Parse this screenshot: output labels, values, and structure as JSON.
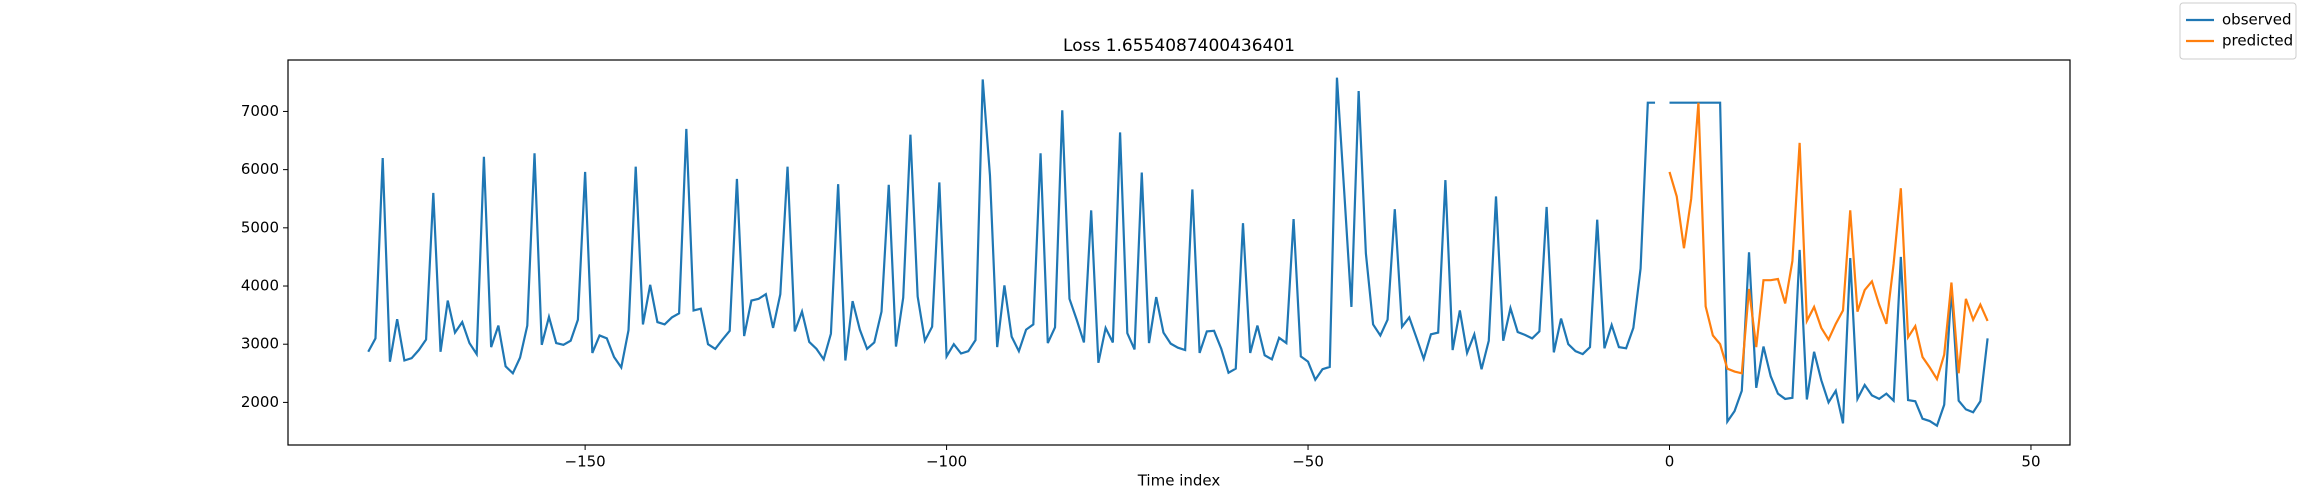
{
  "chart_data": {
    "type": "line",
    "title": "Loss 1.6554087400436401",
    "x_label": "Time index",
    "xlim": [
      -191.1,
      55.4
    ],
    "ylim": [
      1268,
      7884
    ],
    "xticks": [
      {
        "value": -150,
        "label": "−150"
      },
      {
        "value": -100,
        "label": "−100"
      },
      {
        "value": -50,
        "label": "−50"
      },
      0,
      50
    ],
    "yticks": [
      2000,
      3000,
      4000,
      5000,
      6000,
      7000
    ],
    "legend": "upper right",
    "series": [
      {
        "name": "observed",
        "color": "#1f77b4",
        "x": [
          -180,
          -179,
          -178,
          -177,
          -176,
          -175,
          -174,
          -173,
          -172,
          -171,
          -170,
          -169,
          -168,
          -167,
          -166,
          -165,
          -164,
          -163,
          -162,
          -161,
          -160,
          -159,
          -158,
          -157,
          -156,
          -155,
          -154,
          -153,
          -152,
          -151,
          -150,
          -149,
          -148,
          -147,
          -146,
          -145,
          -144,
          -143,
          -142,
          -141,
          -140,
          -139,
          -138,
          -137,
          -136,
          -135,
          -134,
          -133,
          -132,
          -131,
          -130,
          -129,
          -128,
          -127,
          -126,
          -125,
          -124,
          -123,
          -122,
          -121,
          -120,
          -119,
          -118,
          -117,
          -116,
          -115,
          -114,
          -113,
          -112,
          -111,
          -110,
          -109,
          -108,
          -107,
          -106,
          -105,
          -104,
          -103,
          -102,
          -101,
          -100,
          -99,
          -98,
          -97,
          -96,
          -95,
          -94,
          -93,
          -92,
          -91,
          -90,
          -89,
          -88,
          -87,
          -86,
          -85,
          -84,
          -83,
          -82,
          -81,
          -80,
          -79,
          -78,
          -77,
          -76,
          -75,
          -74,
          -73,
          -72,
          -71,
          -70,
          -69,
          -68,
          -67,
          -66,
          -65,
          -64,
          -63,
          -62,
          -61,
          -60,
          -59,
          -58,
          -57,
          -56,
          -55,
          -54,
          -53,
          -52,
          -51,
          -50,
          -49,
          -48,
          -47,
          -46,
          -45,
          -44,
          -43,
          -42,
          -41,
          -40,
          -39,
          -38,
          -37,
          -36,
          -35,
          -34,
          -33,
          -32,
          -31,
          -30,
          -29,
          -28,
          -27,
          -26,
          -25,
          -24,
          -23,
          -22,
          -21,
          -20,
          -19,
          -18,
          -17,
          -16,
          -15,
          -14,
          -13,
          -12,
          -11,
          -10,
          -9,
          -8,
          -7,
          -6,
          -5,
          -4,
          -3,
          -2,
          -1,
          0,
          1,
          2,
          3,
          4,
          5,
          6,
          7,
          8,
          9,
          10,
          11,
          12,
          13,
          14,
          15,
          16,
          17,
          18,
          19,
          20,
          21,
          22,
          23,
          24,
          25,
          26,
          27,
          28,
          29,
          30,
          31,
          32,
          33,
          34,
          35,
          36,
          37,
          38,
          39,
          40,
          41,
          42,
          43,
          44
        ],
        "values": [
          2870,
          3100,
          6200,
          2700,
          3430,
          2720,
          2760,
          2900,
          3080,
          5600,
          2870,
          3750,
          3200,
          3380,
          3020,
          2830,
          6220,
          2950,
          3320,
          2620,
          2500,
          2770,
          3320,
          6280,
          2990,
          3470,
          3020,
          2990,
          3060,
          3420,
          5960,
          2850,
          3150,
          3100,
          2780,
          2600,
          3240,
          6050,
          3340,
          4020,
          3380,
          3340,
          3460,
          3530,
          6700,
          3580,
          3610,
          3000,
          2920,
          3080,
          3230,
          5840,
          3140,
          3750,
          3780,
          3860,
          3280,
          3860,
          6050,
          3220,
          3560,
          3040,
          2920,
          2740,
          3180,
          5750,
          2720,
          3740,
          3250,
          2920,
          3030,
          3560,
          5740,
          2960,
          3800,
          6600,
          3820,
          3060,
          3300,
          5780,
          2790,
          3000,
          2840,
          2880,
          3070,
          7550,
          5900,
          2950,
          4010,
          3130,
          2880,
          3250,
          3340,
          6280,
          3020,
          3290,
          7020,
          3780,
          3420,
          3030,
          5300,
          2680,
          3280,
          3030,
          6640,
          3190,
          2910,
          5950,
          3020,
          3810,
          3200,
          3010,
          2940,
          2900,
          5660,
          2850,
          3220,
          3230,
          2920,
          2510,
          2580,
          5080,
          2850,
          3320,
          2810,
          2740,
          3110,
          3020,
          5150,
          2790,
          2700,
          2390,
          2570,
          2610,
          7580,
          5630,
          3640,
          7350,
          4560,
          3340,
          3150,
          3420,
          5320,
          3300,
          3460,
          3110,
          2750,
          3170,
          3200,
          5820,
          2900,
          3580,
          2850,
          3170,
          2570,
          3060,
          5540,
          3060,
          3620,
          3210,
          3160,
          3100,
          3220,
          5360,
          2860,
          3440,
          3000,
          2880,
          2830,
          2950,
          5140,
          2930,
          3330,
          2950,
          2930,
          3280,
          4300,
          7150,
          7150,
          null,
          7150,
          7150,
          7150,
          7150,
          7150,
          7150,
          7150,
          7150,
          1670,
          1850,
          2200,
          4580,
          2250,
          2960,
          2450,
          2150,
          2060,
          2080,
          4620,
          2050,
          2870,
          2380,
          2000,
          2200,
          1640,
          4480,
          2060,
          2300,
          2120,
          2060,
          2150,
          2030,
          4500,
          2040,
          2020,
          1720,
          1680,
          1600,
          1960,
          3950,
          2030,
          1880,
          1830,
          2020,
          3100
        ]
      },
      {
        "name": "predicted",
        "color": "#ff7f0e",
        "x": [
          0,
          1,
          2,
          3,
          4,
          5,
          6,
          7,
          8,
          9,
          10,
          11,
          12,
          13,
          14,
          15,
          16,
          17,
          18,
          19,
          20,
          21,
          22,
          23,
          24,
          25,
          26,
          27,
          28,
          29,
          30,
          31,
          32,
          33,
          34,
          35,
          36,
          37,
          38,
          39,
          40,
          41,
          42,
          43,
          44
        ],
        "values": [
          5960,
          5540,
          4650,
          5500,
          7150,
          3650,
          3150,
          3000,
          2580,
          2530,
          2500,
          3950,
          2950,
          4100,
          4100,
          4120,
          3700,
          4430,
          6460,
          3400,
          3640,
          3280,
          3080,
          3350,
          3580,
          5300,
          3560,
          3930,
          4080,
          3680,
          3350,
          4380,
          5680,
          3120,
          3310,
          2780,
          2600,
          2400,
          2820,
          4060,
          2500,
          3780,
          3420,
          3680,
          3400
        ]
      }
    ]
  }
}
